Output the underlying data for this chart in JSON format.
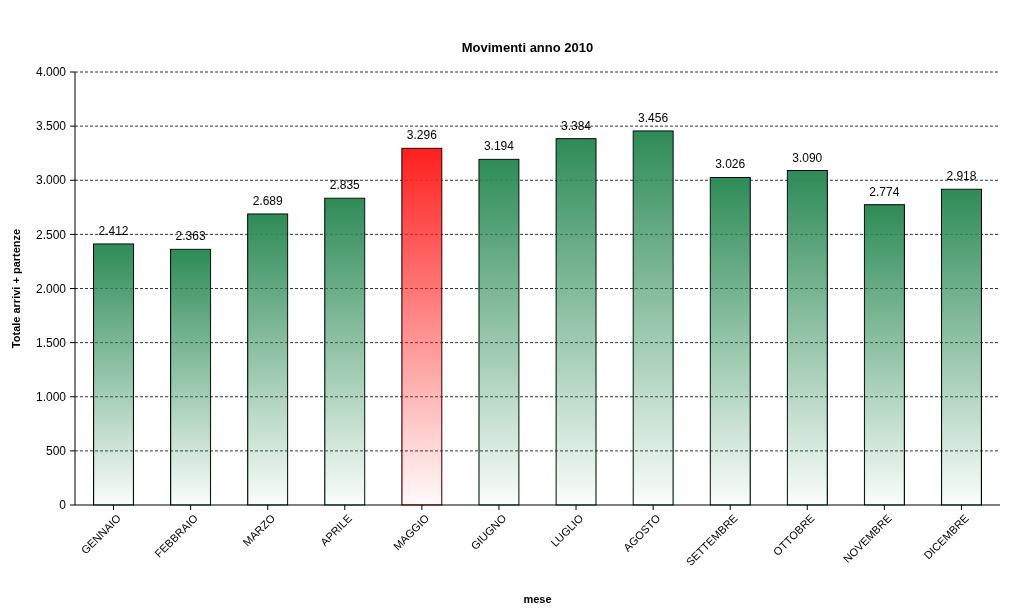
{
  "chart_data": {
    "type": "bar",
    "title": "Movimenti anno 2010",
    "xlabel": "mese",
    "ylabel": "Totale arrivi + partenze",
    "categories": [
      "GENNAIO",
      "FEBBRAIO",
      "MARZO",
      "APRILE",
      "MAGGIO",
      "GIUGNO",
      "LUGLIO",
      "AGOSTO",
      "SETTEMBRE",
      "OTTOBRE",
      "NOVEMBRE",
      "DICEMBRE"
    ],
    "values": [
      2412,
      2363,
      2689,
      2835,
      3296,
      3194,
      3384,
      3456,
      3026,
      3090,
      2774,
      2918
    ],
    "value_labels": [
      "2.412",
      "2.363",
      "2.689",
      "2.835",
      "3.296",
      "3.194",
      "3.384",
      "3.456",
      "3.026",
      "3.090",
      "2.774",
      "2.918"
    ],
    "colors": [
      "#2e8b57",
      "#2e8b57",
      "#2e8b57",
      "#2e8b57",
      "#ff1f1f",
      "#2e8b57",
      "#2e8b57",
      "#2e8b57",
      "#2e8b57",
      "#2e8b57",
      "#2e8b57",
      "#2e8b57"
    ],
    "ylim": [
      0,
      4000
    ],
    "yticks": [
      0,
      500,
      {
        "value": 1000,
        "label": "1.000"
      },
      {
        "value": 1500,
        "label": "1.500"
      },
      {
        "value": 2000,
        "label": "2.000"
      },
      {
        "value": 2500,
        "label": "2.500"
      },
      {
        "value": 3000,
        "label": "3.000"
      },
      {
        "value": 3500,
        "label": "3.500"
      },
      {
        "value": 4000,
        "label": "4.000"
      }
    ],
    "grid": "y"
  }
}
